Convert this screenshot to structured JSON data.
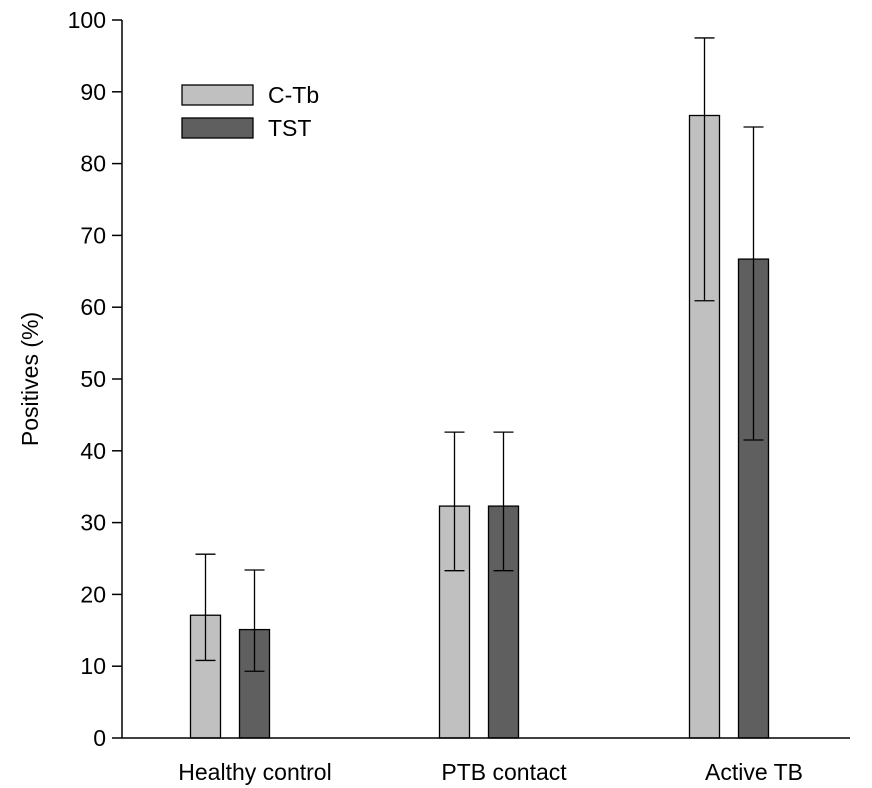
{
  "chart_data": {
    "type": "bar",
    "title": "",
    "xlabel": "",
    "ylabel": "Positives (%)",
    "ylim": [
      0,
      100
    ],
    "yticks": [
      0,
      10,
      20,
      30,
      40,
      50,
      60,
      70,
      80,
      90,
      100
    ],
    "categories": [
      "Healthy control",
      "PTB contact",
      "Active TB"
    ],
    "series": [
      {
        "name": "C-Tb",
        "color": "#c0c0c0",
        "values": [
          17.1,
          32.3,
          86.7
        ],
        "error_low": [
          10.8,
          23.3,
          60.9
        ],
        "error_high": [
          25.6,
          42.6,
          97.5
        ]
      },
      {
        "name": "TST",
        "color": "#5f5f5f",
        "values": [
          15.1,
          32.3,
          66.7
        ],
        "error_low": [
          9.3,
          23.3,
          41.5
        ],
        "error_high": [
          23.4,
          42.6,
          85.1
        ]
      }
    ],
    "legend_position": "top-left",
    "grid": false,
    "error_bars": true
  }
}
